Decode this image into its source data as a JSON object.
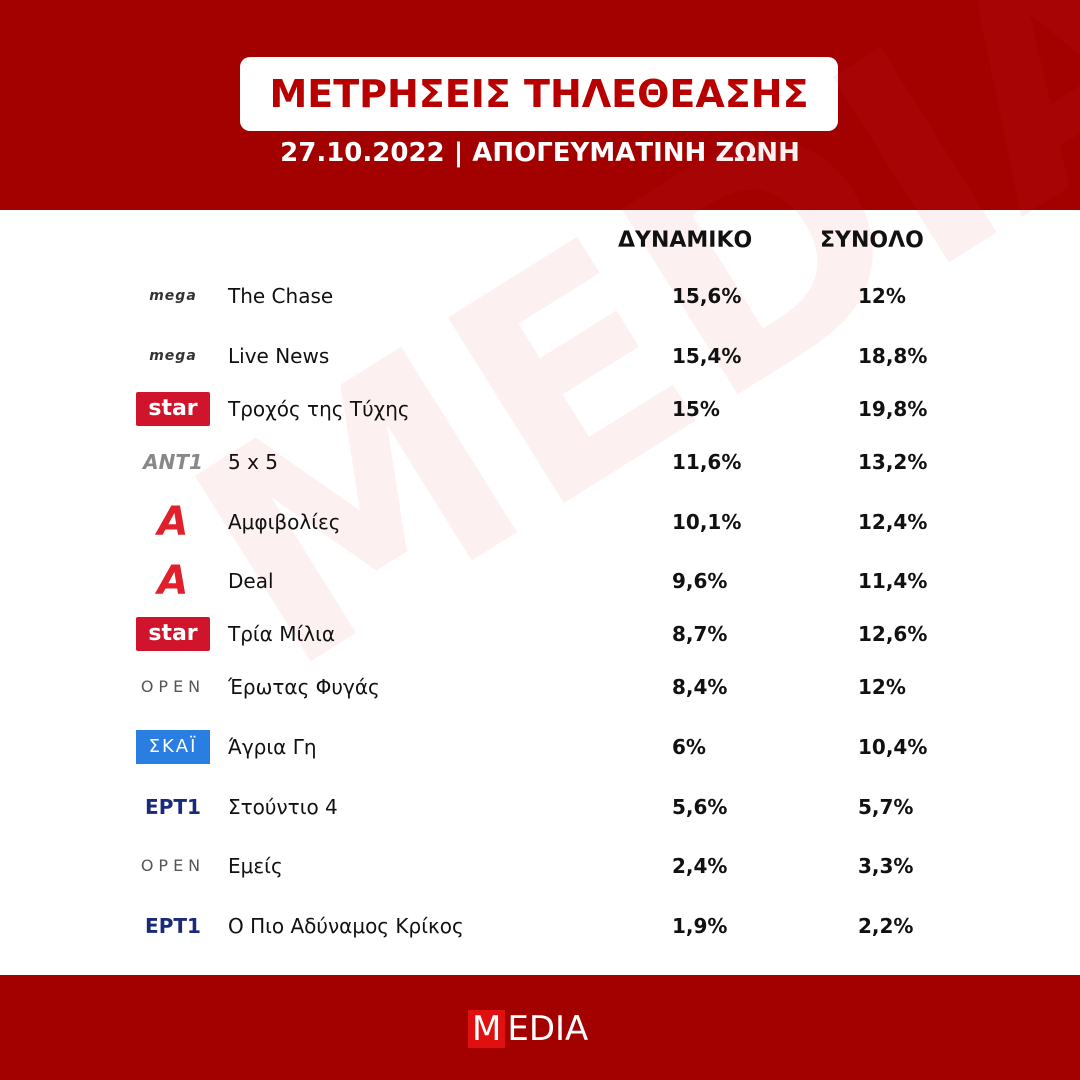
{
  "header": {
    "title": "ΜΕΤΡΗΣΕΙΣ ΤΗΛΕΘΕΑΣΗΣ",
    "subtitle": "27.10.2022 | ΑΠΟΓΕΥΜΑΤΙΝΗ ΖΩΝΗ"
  },
  "watermark": "MEDIA",
  "table": {
    "columns": [
      "ΔΥΝΑΜΙΚΟ",
      "ΣΥΝΟΛΟ"
    ],
    "rows": [
      {
        "channel": "mega",
        "show": "The Chase",
        "dynamiko": "15,6%",
        "synolo": "12%"
      },
      {
        "channel": "mega",
        "show": "Live News",
        "dynamiko": "15,4%",
        "synolo": "18,8%"
      },
      {
        "channel": "star",
        "show": "Τροχός της Τύχης",
        "dynamiko": "15%",
        "synolo": "19,8%"
      },
      {
        "channel": "ANT1",
        "show": "5 x 5",
        "dynamiko": "11,6%",
        "synolo": "13,2%"
      },
      {
        "channel": "Α",
        "show": "Αμφιβολίες",
        "dynamiko": "10,1%",
        "synolo": "12,4%"
      },
      {
        "channel": "Α",
        "show": "Deal",
        "dynamiko": "9,6%",
        "synolo": "11,4%"
      },
      {
        "channel": "star",
        "show": "Τρία Μίλια",
        "dynamiko": "8,7%",
        "synolo": "12,6%"
      },
      {
        "channel": "OPEN",
        "show": "Έρωτας Φυγάς",
        "dynamiko": "8,4%",
        "synolo": "12%"
      },
      {
        "channel": "ΣΚΑΪ",
        "show": "Άγρια Γη",
        "dynamiko": "6%",
        "synolo": "10,4%"
      },
      {
        "channel": "ΕΡΤ1",
        "show": "Στούντιο 4",
        "dynamiko": "5,6%",
        "synolo": "5,7%"
      },
      {
        "channel": "OPEN",
        "show": "Εμείς",
        "dynamiko": "2,4%",
        "synolo": "3,3%"
      },
      {
        "channel": "ΕΡΤ1",
        "show": "Ο Πιο Αδύναμος Κρίκος",
        "dynamiko": "1,9%",
        "synolo": "2,2%"
      }
    ]
  },
  "footer": {
    "logo_mark": "M",
    "logo_text": "EDIA"
  }
}
